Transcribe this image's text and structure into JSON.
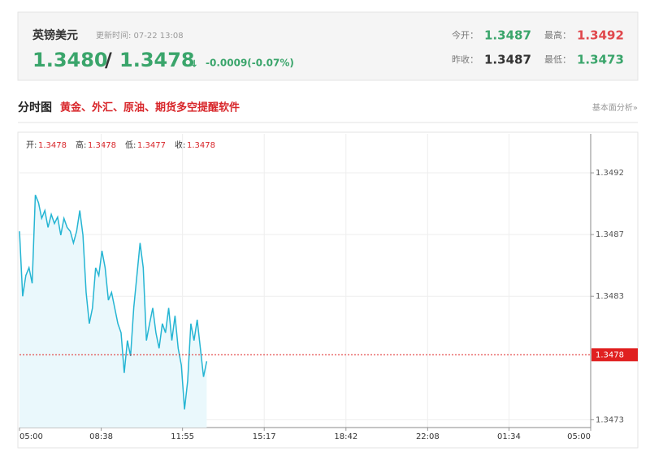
{
  "header": {
    "title": "英镑美元",
    "update": "更新时间: 07-22 13:08",
    "bid": "1.3480",
    "separator": "/",
    "ask": "1.3478",
    "arrow": "↓",
    "change": "-0.0009(-0.07%)",
    "stats": [
      {
        "label": "今开：",
        "value": "1.3487",
        "color": "#3aa56b"
      },
      {
        "label": "最高：",
        "value": "1.3492",
        "color": "#e0474c"
      },
      {
        "label": "昨收：",
        "value": "1.3487",
        "color": "#333333"
      },
      {
        "label": "最低：",
        "value": "1.3473",
        "color": "#3aa56b"
      }
    ]
  },
  "section": {
    "title": "分时图",
    "link": "黄金、外汇、原油、期货多空提醒软件",
    "more": "基本面分析»"
  },
  "chart_data": {
    "type": "line",
    "summary": [
      {
        "label": "开:",
        "value": "1.3478"
      },
      {
        "label": "高:",
        "value": "1.3478"
      },
      {
        "label": "低:",
        "value": "1.3477"
      },
      {
        "label": "收:",
        "value": "1.3478"
      }
    ],
    "x": [
      0,
      8,
      16,
      24,
      32,
      40,
      48,
      56,
      64,
      72,
      80,
      88,
      96,
      104,
      112,
      120,
      128,
      136,
      144,
      152,
      160,
      168,
      176,
      184,
      192,
      200,
      208,
      216,
      224,
      232,
      240,
      248,
      256,
      264,
      272,
      280,
      288,
      296,
      304,
      312,
      320,
      328,
      336,
      344,
      352,
      360,
      368,
      376,
      384,
      392,
      400,
      408,
      416,
      424,
      432,
      440,
      448,
      456,
      464,
      472
    ],
    "series": [
      {
        "color": "#25b5d3",
        "fill": "#eaf8fc",
        "values": [
          1.34875,
          1.34825,
          1.34841,
          1.34847,
          1.34835,
          1.34903,
          1.34897,
          1.34885,
          1.34891,
          1.34878,
          1.34888,
          1.34881,
          1.34886,
          1.34872,
          1.34885,
          1.34878,
          1.34875,
          1.34866,
          1.34875,
          1.34891,
          1.34872,
          1.34828,
          1.34804,
          1.34816,
          1.34847,
          1.34841,
          1.3486,
          1.34847,
          1.34822,
          1.34828,
          1.34816,
          1.34804,
          1.34797,
          1.34766,
          1.34791,
          1.34779,
          1.34816,
          1.34841,
          1.34866,
          1.34847,
          1.34791,
          1.34804,
          1.34816,
          1.34797,
          1.34785,
          1.34804,
          1.34797,
          1.34816,
          1.34791,
          1.3481,
          1.34785,
          1.34772,
          1.34738,
          1.3476,
          1.34804,
          1.34791,
          1.34807,
          1.34785,
          1.34763,
          1.34775
        ]
      }
    ],
    "xlim": [
      0,
      1440
    ],
    "xticks": [
      {
        "value": 0,
        "label": "05:00"
      },
      {
        "value": 206,
        "label": "08:38"
      },
      {
        "value": 411,
        "label": "11:55"
      },
      {
        "value": 617,
        "label": "15:17"
      },
      {
        "value": 823,
        "label": "18:42"
      },
      {
        "value": 1029,
        "label": "22:08"
      },
      {
        "value": 1234,
        "label": "01:34"
      },
      {
        "value": 1440,
        "label": "05:00"
      }
    ],
    "ylim": [
      1.34724,
      1.3495
    ],
    "yticks": [
      1.3492,
      {
        "value": 1.348725,
        "label": "1.3487"
      },
      {
        "value": 1.34825,
        "label": "1.3483"
      },
      1.3473
    ],
    "grid": true,
    "last": 1.3478,
    "last_color": "#e02020"
  }
}
